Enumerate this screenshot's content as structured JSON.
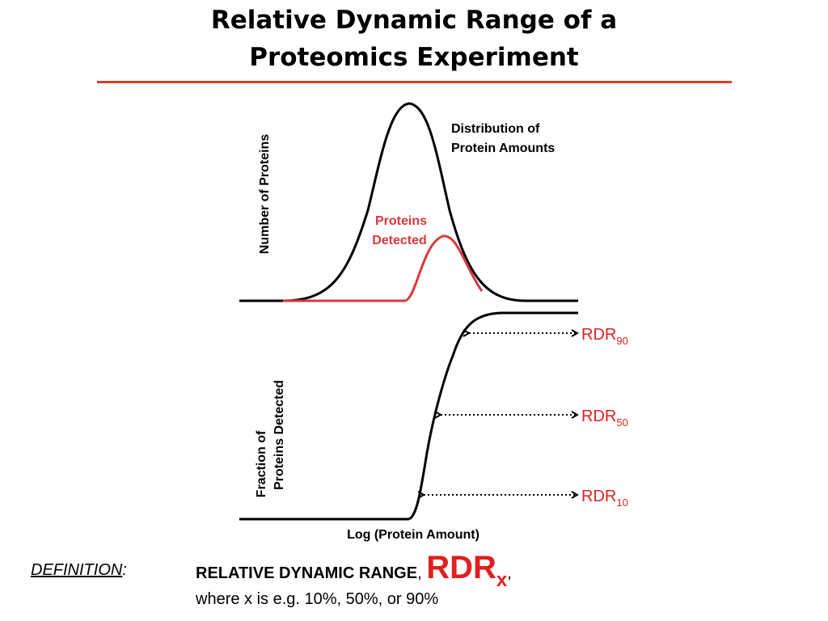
{
  "title": {
    "line1": "Relative Dynamic Range of a",
    "line2": "Proteomics Experiment"
  },
  "colors": {
    "accent_rule": "#d8402a",
    "detected_curve": "#d8383d",
    "rdr_label": "#e02020",
    "black": "#000000"
  },
  "top_plot": {
    "ylabel": "Number of Proteins",
    "distribution_label": [
      "Distribution of",
      "Protein Amounts"
    ],
    "detected_label": [
      "Proteins",
      "Detected"
    ]
  },
  "bottom_plot": {
    "ylabel": [
      "Fraction of",
      "Proteins Detected"
    ],
    "xlabel": "Log (Protein Amount)",
    "markers": [
      {
        "text": "RDR",
        "sub": "90"
      },
      {
        "text": "RDR",
        "sub": "50"
      },
      {
        "text": "RDR",
        "sub": "10"
      }
    ]
  },
  "definition": {
    "label": "DEFINITION",
    "colon": ":",
    "term": "RELATIVE DYNAMIC RANGE",
    "comma": ", ",
    "symbol": "RDR",
    "symbol_sub": "x",
    "trailing": ",",
    "where": "where x is e.g. 10%, 50%, or 90%"
  }
}
